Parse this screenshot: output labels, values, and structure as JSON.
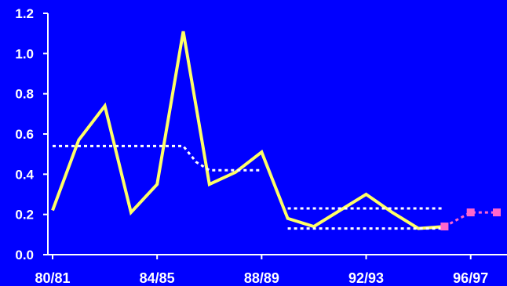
{
  "chart_data": {
    "type": "line",
    "background_color": "#0000FF",
    "axis_color": "#FFFFFF",
    "grid": false,
    "legend": "none",
    "xlabel": "",
    "ylabel": "",
    "xlim": [
      0,
      18
    ],
    "ylim": [
      0,
      1.2
    ],
    "x_ticks": [
      {
        "x": 0,
        "label": "80/81"
      },
      {
        "x": 4,
        "label": "84/85"
      },
      {
        "x": 8,
        "label": "88/89"
      },
      {
        "x": 12,
        "label": "92/93"
      },
      {
        "x": 16,
        "label": "96/97"
      }
    ],
    "y_ticks": [
      {
        "y": 0.0,
        "label": "0.0"
      },
      {
        "y": 0.2,
        "label": "0.2"
      },
      {
        "y": 0.4,
        "label": "0.4"
      },
      {
        "y": 0.6,
        "label": "0.6"
      },
      {
        "y": 0.8,
        "label": "0.8"
      },
      {
        "y": 1.0,
        "label": "1.0"
      },
      {
        "y": 1.2,
        "label": "1.2"
      }
    ],
    "series": [
      {
        "style": "solid",
        "color": "#FFFF66",
        "markers": false,
        "points": [
          [
            0,
            0.22
          ],
          [
            1,
            0.57
          ],
          [
            2,
            0.74
          ],
          [
            3,
            0.21
          ],
          [
            4,
            0.35
          ],
          [
            5,
            1.11
          ],
          [
            6,
            0.35
          ],
          [
            7,
            0.41
          ],
          [
            8,
            0.51
          ],
          [
            9,
            0.18
          ],
          [
            10,
            0.14
          ],
          [
            11,
            0.22
          ],
          [
            12,
            0.3
          ],
          [
            13,
            0.21
          ],
          [
            14,
            0.13
          ],
          [
            15,
            0.14
          ]
        ]
      },
      {
        "style": "dotted",
        "color": "#FFFFFF",
        "markers": false,
        "points": [
          [
            0,
            0.54
          ],
          [
            5,
            0.54
          ],
          [
            5.5,
            0.46
          ],
          [
            6,
            0.42
          ],
          [
            8,
            0.42
          ]
        ]
      },
      {
        "style": "dotted",
        "color": "#FFFFFF",
        "markers": false,
        "points": [
          [
            9,
            0.23
          ],
          [
            15,
            0.23
          ]
        ]
      },
      {
        "style": "dotted",
        "color": "#FFFFFF",
        "markers": false,
        "points": [
          [
            9,
            0.13
          ],
          [
            15,
            0.13
          ]
        ]
      },
      {
        "style": "dotted",
        "color": "#FF66CC",
        "markers": true,
        "points": [
          [
            15,
            0.14
          ],
          [
            16,
            0.21
          ],
          [
            17,
            0.21
          ]
        ]
      }
    ]
  }
}
